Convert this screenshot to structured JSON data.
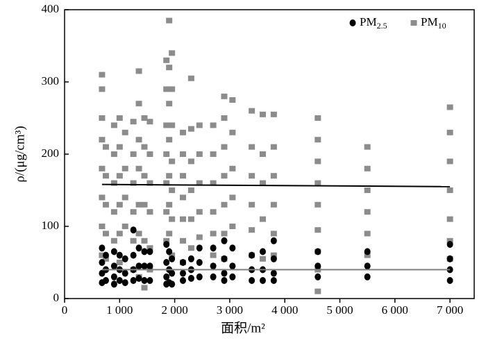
{
  "chart_data": {
    "type": "scatter",
    "xlabel": "面积/m²",
    "ylabel": "ρ/(μg/cm³)",
    "xlim": [
      0,
      7440
    ],
    "ylim": [
      0,
      400
    ],
    "xticks": [
      0,
      {
        "value": 1000,
        "label": "1 000"
      },
      {
        "value": 2000,
        "label": "2 000"
      },
      {
        "value": 3000,
        "label": "3 000"
      },
      {
        "value": 4000,
        "label": "4 000"
      },
      {
        "value": 5000,
        "label": "5 000"
      },
      {
        "value": 6000,
        "label": "6 000"
      },
      {
        "value": 7000,
        "label": "7 000"
      }
    ],
    "yticks": [
      0,
      100,
      200,
      300,
      400
    ],
    "legend": "upper right",
    "series": [
      {
        "name": "PM2.5",
        "color": "#000000",
        "marker": "circle",
        "x": [
          680,
          680,
          680,
          680,
          750,
          750,
          750,
          900,
          900,
          900,
          900,
          1000,
          1000,
          1000,
          1100,
          1100,
          1100,
          1250,
          1250,
          1250,
          1250,
          1350,
          1350,
          1350,
          1450,
          1450,
          1450,
          1550,
          1550,
          1550,
          1850,
          1850,
          1850,
          1850,
          1900,
          1900,
          1900,
          1950,
          1950,
          1950,
          2150,
          2150,
          2150,
          2300,
          2300,
          2300,
          2450,
          2450,
          2450,
          2700,
          2700,
          2700,
          2900,
          2900,
          2900,
          2900,
          3050,
          3050,
          3050,
          3400,
          3400,
          3400,
          3600,
          3600,
          3600,
          3800,
          3800,
          3800,
          3800,
          4600,
          4600,
          4600,
          5500,
          5500,
          5500,
          7000,
          7000,
          7000,
          7000
        ],
        "values": [
          70,
          50,
          35,
          22,
          60,
          40,
          25,
          65,
          45,
          30,
          20,
          60,
          40,
          25,
          55,
          35,
          22,
          95,
          60,
          40,
          25,
          70,
          45,
          28,
          65,
          45,
          25,
          65,
          45,
          25,
          75,
          50,
          30,
          20,
          65,
          40,
          22,
          55,
          35,
          20,
          50,
          35,
          25,
          55,
          40,
          28,
          70,
          50,
          30,
          70,
          45,
          30,
          80,
          55,
          35,
          25,
          70,
          45,
          30,
          60,
          40,
          25,
          65,
          40,
          25,
          80,
          55,
          35,
          25,
          65,
          45,
          30,
          65,
          45,
          30,
          75,
          55,
          40,
          25
        ]
      },
      {
        "name": "PM10",
        "color": "#8c8c8c",
        "marker": "square",
        "x": [
          680,
          680,
          680,
          680,
          680,
          680,
          680,
          680,
          750,
          750,
          750,
          750,
          750,
          900,
          900,
          900,
          900,
          900,
          1000,
          1000,
          1000,
          1000,
          1000,
          1000,
          1100,
          1100,
          1100,
          1100,
          1250,
          1250,
          1250,
          1250,
          1250,
          1250,
          1350,
          1350,
          1350,
          1350,
          1350,
          1350,
          1350,
          1450,
          1450,
          1450,
          1450,
          1450,
          1450,
          1550,
          1550,
          1550,
          1550,
          1550,
          1550,
          1850,
          1850,
          1850,
          1850,
          1850,
          1850,
          1850,
          1900,
          1900,
          1900,
          1900,
          1900,
          1900,
          1900,
          1950,
          1950,
          1950,
          1950,
          1950,
          1950,
          1950,
          2150,
          2150,
          2150,
          2150,
          2150,
          2150,
          2150,
          2300,
          2300,
          2300,
          2300,
          2300,
          2300,
          2450,
          2450,
          2450,
          2450,
          2450,
          2700,
          2700,
          2700,
          2700,
          2700,
          2700,
          2900,
          2900,
          2900,
          2900,
          2900,
          2900,
          2900,
          3050,
          3050,
          3050,
          3050,
          3050,
          3400,
          3400,
          3400,
          3400,
          3400,
          3400,
          3600,
          3600,
          3600,
          3600,
          3600,
          3800,
          3800,
          3800,
          3800,
          3800,
          3800,
          4600,
          4600,
          4600,
          4600,
          4600,
          4600,
          4600,
          4600,
          4600,
          5500,
          5500,
          5500,
          5500,
          5500,
          5500,
          7000,
          7000,
          7000,
          7000,
          7000,
          7000,
          7000
        ],
        "values": [
          310,
          290,
          250,
          220,
          180,
          140,
          100,
          60,
          210,
          170,
          130,
          90,
          55,
          240,
          200,
          160,
          120,
          80,
          250,
          210,
          170,
          130,
          90,
          50,
          230,
          180,
          140,
          100,
          245,
          200,
          160,
          120,
          80,
          40,
          315,
          270,
          220,
          180,
          130,
          90,
          30,
          250,
          210,
          170,
          130,
          80,
          15,
          245,
          200,
          160,
          120,
          70,
          40,
          330,
          290,
          240,
          200,
          160,
          120,
          80,
          385,
          320,
          270,
          220,
          170,
          130,
          90,
          340,
          290,
          240,
          190,
          150,
          110,
          60,
          230,
          200,
          170,
          140,
          110,
          80,
          50,
          305,
          235,
          190,
          150,
          110,
          70,
          240,
          200,
          160,
          120,
          85,
          240,
          200,
          160,
          120,
          90,
          60,
          280,
          250,
          210,
          170,
          130,
          90,
          55,
          275,
          230,
          180,
          140,
          100,
          260,
          210,
          170,
          130,
          95,
          60,
          255,
          200,
          160,
          110,
          55,
          255,
          210,
          170,
          130,
          90,
          60,
          250,
          220,
          190,
          160,
          130,
          95,
          65,
          40,
          10,
          210,
          180,
          150,
          120,
          90,
          60,
          265,
          230,
          190,
          150,
          110,
          80,
          55
        ]
      }
    ],
    "trend_lines": [
      {
        "color": "#000000",
        "x": [
          680,
          7000
        ],
        "values": [
          158,
          155
        ]
      },
      {
        "color": "#808080",
        "x": [
          680,
          7000
        ],
        "values": [
          40,
          40
        ]
      }
    ]
  }
}
